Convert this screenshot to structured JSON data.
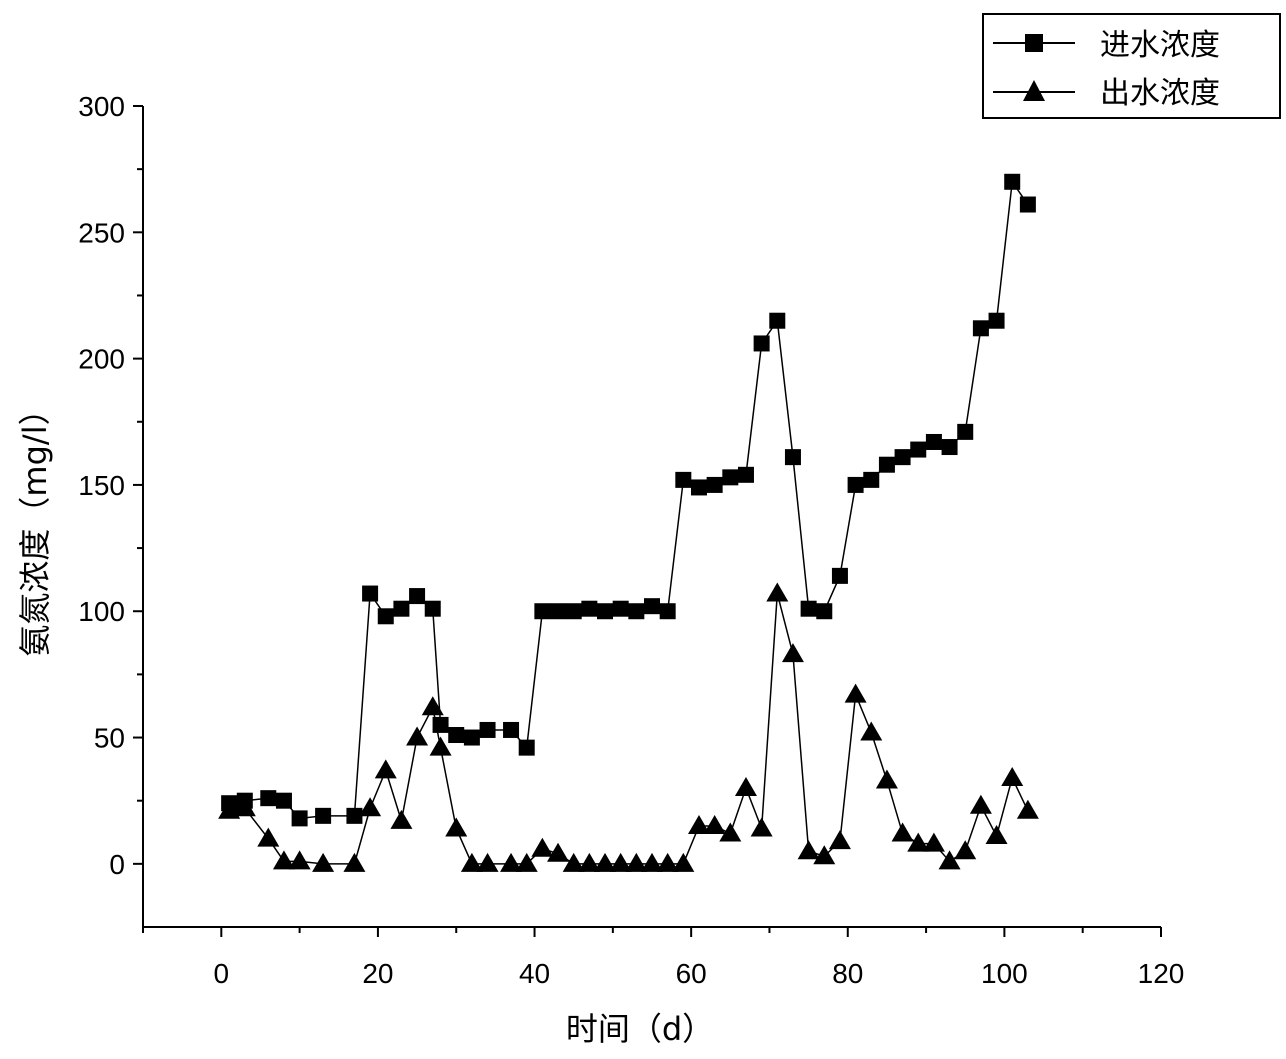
{
  "chart_data": {
    "type": "scatter",
    "xlabel": "时间（d）",
    "ylabel": "氨氮浓度（mg/l）",
    "xlim": [
      -10,
      120
    ],
    "ylim": [
      -25,
      300
    ],
    "xticks": [
      0,
      20,
      40,
      60,
      80,
      100,
      120
    ],
    "yticks": [
      0,
      50,
      100,
      150,
      200,
      250,
      300
    ],
    "grid": false,
    "legend_position": "top-right",
    "series": [
      {
        "name": "进水浓度",
        "marker": "square",
        "color": "#000000",
        "points": [
          [
            1,
            24
          ],
          [
            2,
            23
          ],
          [
            3,
            25
          ],
          [
            6,
            26
          ],
          [
            8,
            25
          ],
          [
            10,
            18
          ],
          [
            13,
            19
          ],
          [
            17,
            19
          ],
          [
            19,
            107
          ],
          [
            21,
            98
          ],
          [
            23,
            101
          ],
          [
            25,
            106
          ],
          [
            27,
            101
          ],
          [
            28,
            55
          ],
          [
            30,
            51
          ],
          [
            32,
            50
          ],
          [
            34,
            53
          ],
          [
            37,
            53
          ],
          [
            39,
            46
          ],
          [
            41,
            100
          ],
          [
            43,
            100
          ],
          [
            45,
            100
          ],
          [
            47,
            101
          ],
          [
            49,
            100
          ],
          [
            51,
            101
          ],
          [
            53,
            100
          ],
          [
            55,
            102
          ],
          [
            57,
            100
          ],
          [
            59,
            152
          ],
          [
            61,
            149
          ],
          [
            63,
            150
          ],
          [
            65,
            153
          ],
          [
            67,
            154
          ],
          [
            69,
            206
          ],
          [
            71,
            215
          ],
          [
            73,
            161
          ],
          [
            75,
            101
          ],
          [
            77,
            100
          ],
          [
            79,
            114
          ],
          [
            81,
            150
          ],
          [
            83,
            152
          ],
          [
            85,
            158
          ],
          [
            87,
            161
          ],
          [
            89,
            164
          ],
          [
            91,
            167
          ],
          [
            93,
            165
          ],
          [
            95,
            171
          ],
          [
            97,
            212
          ],
          [
            99,
            215
          ],
          [
            101,
            270
          ],
          [
            103,
            261
          ]
        ]
      },
      {
        "name": "出水浓度",
        "marker": "triangle",
        "color": "#000000",
        "points": [
          [
            1,
            21
          ],
          [
            3,
            22
          ],
          [
            6,
            10
          ],
          [
            8,
            1
          ],
          [
            10,
            1
          ],
          [
            13,
            0
          ],
          [
            17,
            0
          ],
          [
            19,
            22
          ],
          [
            21,
            37
          ],
          [
            23,
            17
          ],
          [
            25,
            50
          ],
          [
            27,
            62
          ],
          [
            28,
            46
          ],
          [
            30,
            14
          ],
          [
            32,
            0
          ],
          [
            34,
            0
          ],
          [
            37,
            0
          ],
          [
            39,
            0
          ],
          [
            41,
            6
          ],
          [
            43,
            4
          ],
          [
            45,
            0
          ],
          [
            47,
            0
          ],
          [
            49,
            0
          ],
          [
            51,
            0
          ],
          [
            53,
            0
          ],
          [
            55,
            0
          ],
          [
            57,
            0
          ],
          [
            59,
            0
          ],
          [
            61,
            15
          ],
          [
            63,
            15
          ],
          [
            65,
            12
          ],
          [
            67,
            30
          ],
          [
            69,
            14
          ],
          [
            71,
            107
          ],
          [
            73,
            83
          ],
          [
            75,
            5
          ],
          [
            77,
            3
          ],
          [
            79,
            9
          ],
          [
            81,
            67
          ],
          [
            83,
            52
          ],
          [
            85,
            33
          ],
          [
            87,
            12
          ],
          [
            89,
            8
          ],
          [
            91,
            8
          ],
          [
            93,
            1
          ],
          [
            95,
            5
          ],
          [
            97,
            23
          ],
          [
            99,
            11
          ],
          [
            101,
            34
          ],
          [
            103,
            21
          ]
        ]
      }
    ]
  }
}
